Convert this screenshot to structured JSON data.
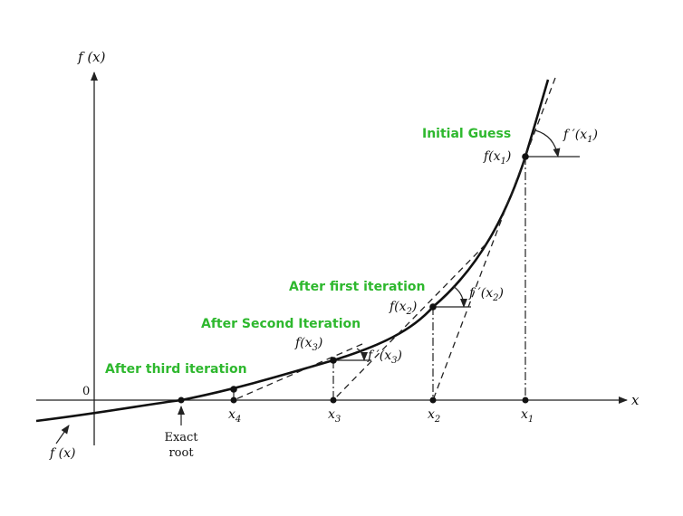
{
  "labels": {
    "y_axis": "f (x)",
    "x_axis": "x",
    "origin": "0",
    "curve_label": "f (x)",
    "root_line1": "Exact",
    "root_line2": "root"
  },
  "annotations": {
    "initial_guess": "Initial Guess",
    "after_first": "After first iteration",
    "after_second": "After Second Iteration",
    "after_third": "After third iteration"
  },
  "points": {
    "x1": {
      "base": "x",
      "sub": "1"
    },
    "x2": {
      "base": "x",
      "sub": "2"
    },
    "x3": {
      "base": "x",
      "sub": "3"
    },
    "x4": {
      "base": "x",
      "sub": "4"
    }
  },
  "values": {
    "fx1": {
      "pre": "f(x",
      "sub": "1",
      "post": ")"
    },
    "fx2": {
      "pre": "f(x",
      "sub": "2",
      "post": ")"
    },
    "fx3": {
      "pre": "f(x",
      "sub": "3",
      "post": ")"
    }
  },
  "slopes": {
    "dfx1": {
      "pre": "f ′(x",
      "sub": "1",
      "post": ")"
    },
    "dfx2": {
      "pre": "f ′(x",
      "sub": "2",
      "post": ")"
    },
    "dfx3": {
      "pre": "f ′(x",
      "sub": "3",
      "post": ")"
    }
  },
  "colors": {
    "annotation": "#2eb82e",
    "ink": "#111111"
  }
}
